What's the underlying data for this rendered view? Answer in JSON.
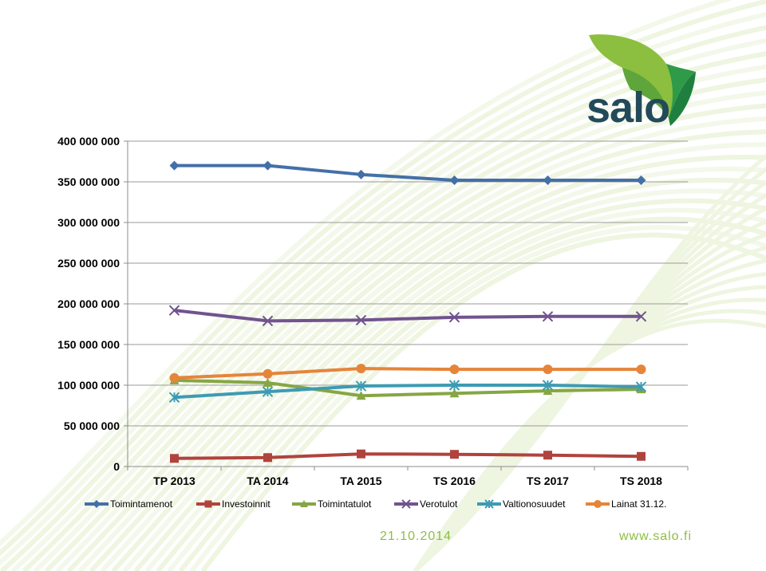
{
  "brand": {
    "name": "salo",
    "green": "#8cbf3f",
    "dark": "#234a5a"
  },
  "footer": {
    "date": "21.10.2014",
    "url": "www.salo.fi"
  },
  "chart_data": {
    "type": "line",
    "categories": [
      "TP 2013",
      "TA 2014",
      "TA 2015",
      "TS 2016",
      "TS 2017",
      "TS 2018"
    ],
    "ylim": [
      0,
      400000000
    ],
    "yticks": [
      {
        "value": 0,
        "label": "0"
      },
      {
        "value": 50000000,
        "label": "50 000 000"
      },
      {
        "value": 100000000,
        "label": "100 000 000"
      },
      {
        "value": 150000000,
        "label": "150 000 000"
      },
      {
        "value": 200000000,
        "label": "200 000 000"
      },
      {
        "value": 250000000,
        "label": "250 000 000"
      },
      {
        "value": 300000000,
        "label": "300 000 000"
      },
      {
        "value": 350000000,
        "label": "350 000 000"
      },
      {
        "value": 400000000,
        "label": "400 000 000"
      }
    ],
    "grid": true,
    "legend_position": "bottom",
    "series": [
      {
        "name": "Toimintamenot",
        "color": "#4470a8",
        "marker": "diamond",
        "values": [
          370000000,
          370000000,
          359000000,
          352000000,
          352000000,
          352000000
        ]
      },
      {
        "name": "Investoinnit",
        "color": "#b0433d",
        "marker": "square",
        "values": [
          10000000,
          11000000,
          15500000,
          15000000,
          14000000,
          12500000
        ]
      },
      {
        "name": "Toimintatulot",
        "color": "#86a644",
        "marker": "triangle",
        "values": [
          106000000,
          103000000,
          87000000,
          90000000,
          93000000,
          95000000
        ]
      },
      {
        "name": "Verotulot",
        "color": "#71538f",
        "marker": "x",
        "values": [
          192000000,
          179000000,
          180000000,
          183500000,
          184500000,
          184500000
        ]
      },
      {
        "name": "Valtionosuudet",
        "color": "#3d9bb3",
        "marker": "star",
        "values": [
          85000000,
          92000000,
          99000000,
          100000000,
          100000000,
          98000000
        ]
      },
      {
        "name": "Lainat 31.12.",
        "color": "#e5853a",
        "marker": "circle",
        "values": [
          109000000,
          114000000,
          120500000,
          119500000,
          119500000,
          119500000
        ]
      }
    ]
  }
}
